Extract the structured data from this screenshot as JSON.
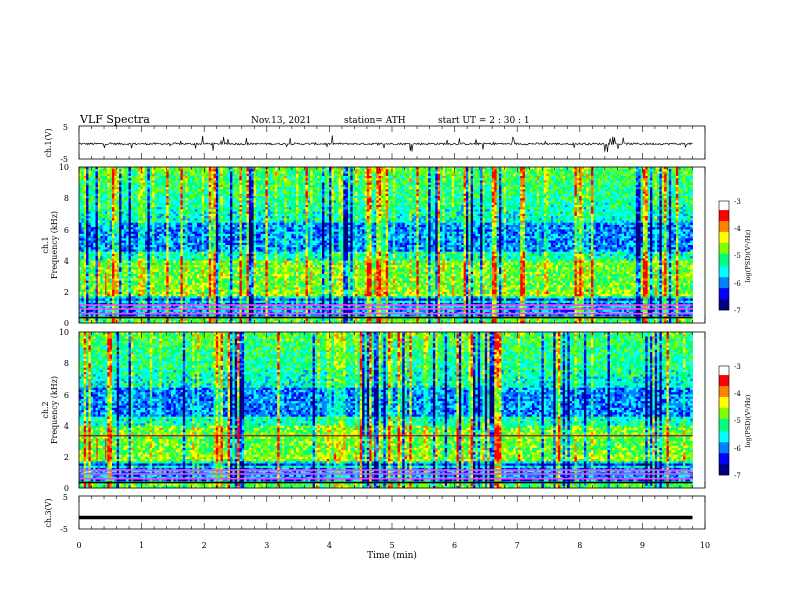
{
  "header": {
    "title": "VLF  Spectra",
    "date": "Nov.13, 2021",
    "station": "station= ATH",
    "start_ut": "start  UT  =   2  : 30 : 1"
  },
  "chart_data": [
    {
      "type": "line",
      "panel": "ch1-waveform",
      "ylabel": "ch.1(V)",
      "ylim": [
        -5,
        5
      ],
      "yticks": [
        "5",
        "-5"
      ],
      "description_values": {
        "mean": -0.4,
        "noise_amplitude": 0.6,
        "spike_amplitude": 2.5
      }
    },
    {
      "type": "heatmap",
      "panel": "ch1-spectrogram",
      "ylabel": "ch.1\nFrequency  (kHz)",
      "ylabel_lines": [
        "ch.1",
        "Frequency  (kHz)"
      ],
      "ylim": [
        0,
        10
      ],
      "yticks": [
        "0",
        "2",
        "4",
        "6",
        "8",
        "10"
      ],
      "colorbar": {
        "label": "log(PSD)(V²/Hz)",
        "range": [
          -7,
          -3
        ],
        "ticks": [
          "-3",
          "-4",
          "-5",
          "-6",
          "-7"
        ]
      }
    },
    {
      "type": "heatmap",
      "panel": "ch2-spectrogram",
      "ylabel_lines": [
        "ch.2",
        "Frequency  (kHz)"
      ],
      "ylim": [
        0,
        10
      ],
      "yticks": [
        "0",
        "2",
        "4",
        "6",
        "8",
        "10"
      ],
      "colorbar": {
        "label": "log(PSD)(V²/Hz)",
        "range": [
          -7,
          -3
        ],
        "ticks": [
          "-3",
          "-4",
          "-5",
          "-6",
          "-7"
        ]
      }
    },
    {
      "type": "line",
      "panel": "ch3-waveform",
      "ylabel": "ch.3(V)",
      "ylim": [
        -5,
        5
      ],
      "yticks": [
        "5",
        "-5"
      ],
      "x": [
        0,
        9.8
      ],
      "y": [
        -1.5,
        -1.5
      ]
    }
  ],
  "x_axis": {
    "label": "Time  (min)",
    "range": [
      0,
      10
    ],
    "ticks": [
      "0",
      "1",
      "2",
      "3",
      "4",
      "5",
      "6",
      "7",
      "8",
      "9",
      "10"
    ],
    "data_end": 9.8
  },
  "colors": {
    "colormap": [
      "#000080",
      "#0000ff",
      "#0080ff",
      "#00ffff",
      "#00ff80",
      "#80ff00",
      "#ffff00",
      "#ff8000",
      "#ff0000",
      "#ffffff"
    ]
  }
}
